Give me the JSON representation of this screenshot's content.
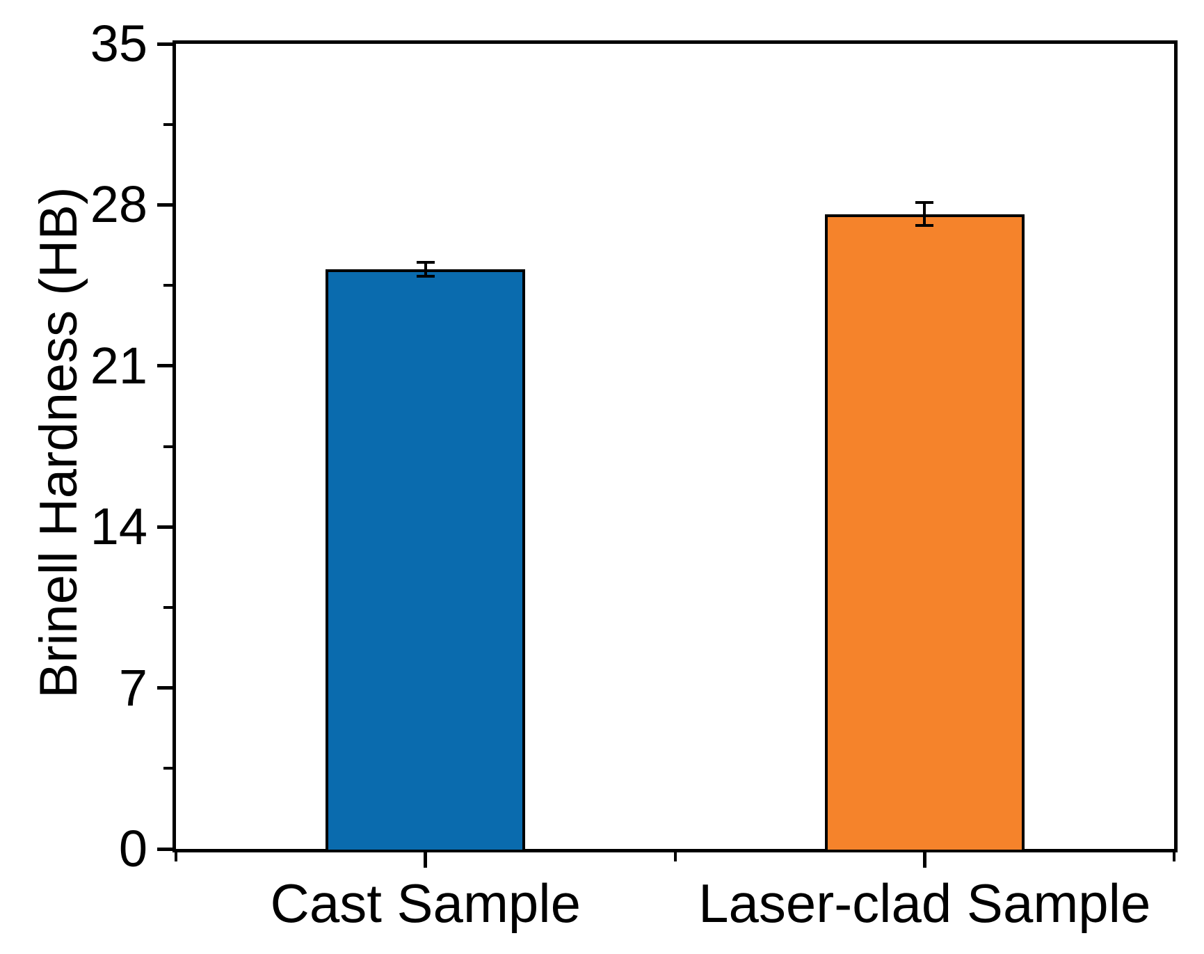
{
  "chart_data": {
    "type": "bar",
    "title": "",
    "categories": [
      "Cast Sample",
      "Laser-clad Sample"
    ],
    "values": [
      25.2,
      27.6
    ],
    "errors": [
      0.3,
      0.5
    ],
    "bar_colors": [
      "#0A6BAE",
      "#F5832B"
    ],
    "bar_edge_color": "#000000",
    "error_bar_color": "#000000",
    "xlabel": "",
    "ylabel": "Brinell Hardness (HB)",
    "ylim": [
      0,
      35
    ],
    "y_major_ticks": [
      0,
      7,
      14,
      21,
      28,
      35
    ],
    "y_tick_labels": [
      "0",
      "7",
      "14",
      "21",
      "28",
      "35"
    ],
    "y_minor_ticks": [
      3.5,
      10.5,
      17.5,
      24.5,
      31.5
    ],
    "grid": false,
    "legend_position": "none",
    "frame_color": "#000000",
    "background_color": "#FFFFFF"
  }
}
